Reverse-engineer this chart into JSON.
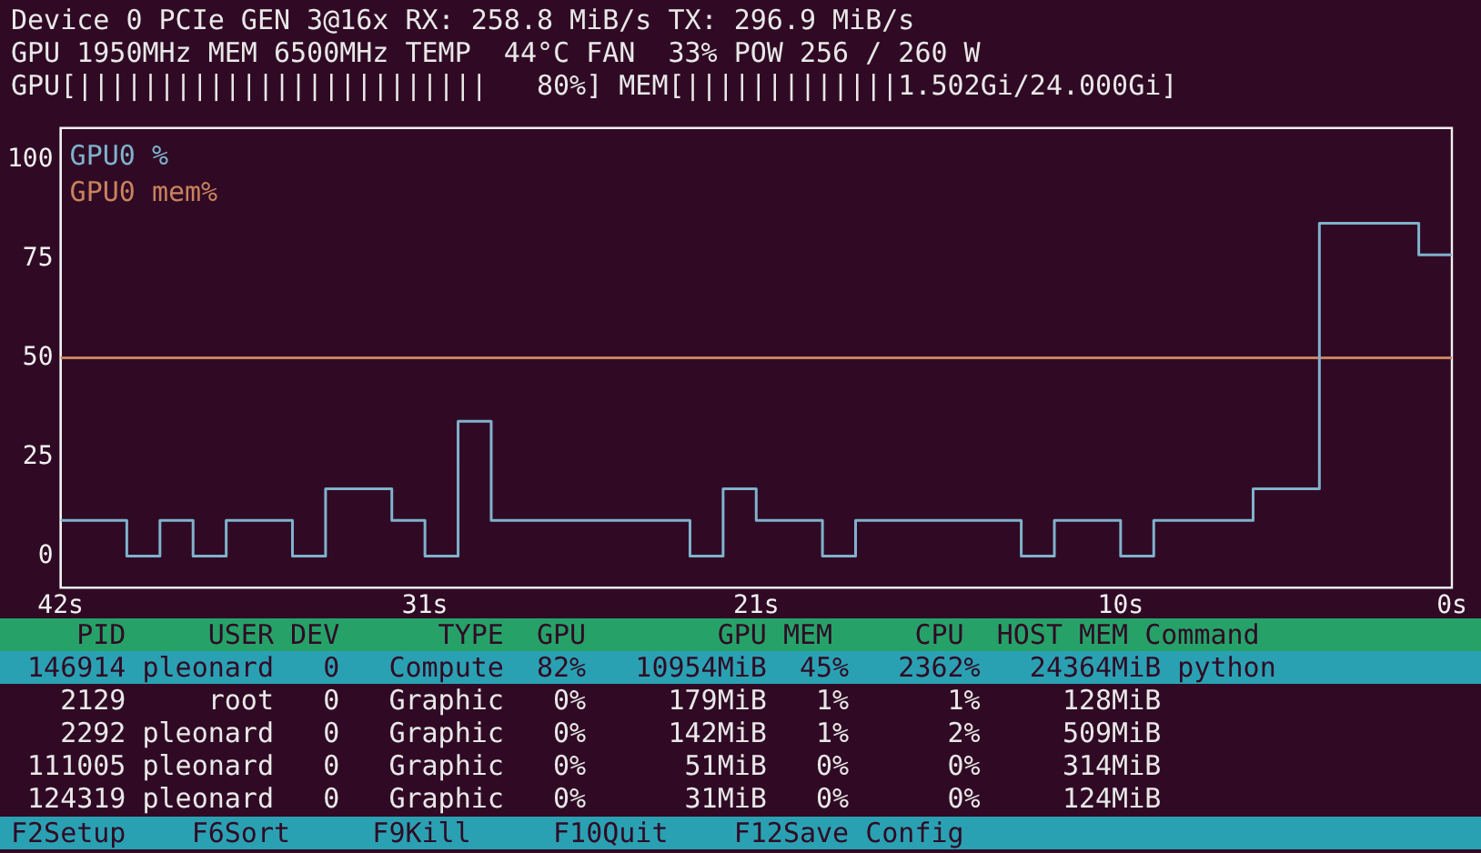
{
  "chart_data": [
    {
      "type": "other",
      "annotations": [
        "Device 0 PCIe GEN 3@16x RX: 258.8 MiB/s TX: 296.9 MiB/s",
        "GPU 1950MHz MEM 6500MHz TEMP  44°C FAN  33% POW 256 / 260 W",
        "GPU[|||||||||||||||||||||||||   80%] MEM[|||||||||||||1.502Gi/24.000Gi]"
      ]
    },
    {
      "type": "step",
      "legend": "top left",
      "ylim": [
        -8,
        108
      ],
      "yticks": [
        0,
        25,
        50,
        75,
        100
      ],
      "xlim": [
        42,
        0
      ],
      "xticks": [
        {
          "value": 42,
          "label": "42s"
        },
        {
          "value": 31,
          "label": "31s"
        },
        {
          "value": 21,
          "label": "21s"
        },
        {
          "value": 10,
          "label": "10s"
        },
        {
          "value": 0,
          "label": "0s"
        }
      ],
      "series": [
        {
          "name": "GPU0 %",
          "color": "#7fb2cc",
          "type": "step",
          "x": [
            42,
            41,
            40,
            39,
            38,
            37,
            36,
            35,
            34,
            33,
            32,
            31,
            30,
            29,
            28,
            27,
            26,
            25,
            24,
            23,
            22,
            21,
            20,
            19,
            18,
            17,
            16,
            15,
            14,
            13,
            12,
            11,
            10,
            9,
            8,
            7,
            6,
            5,
            4,
            3,
            2,
            1,
            0
          ],
          "values": [
            9,
            9,
            0,
            9,
            0,
            9,
            9,
            0,
            17,
            17,
            9,
            0,
            34,
            9,
            9,
            9,
            9,
            9,
            9,
            0,
            17,
            9,
            9,
            0,
            9,
            9,
            9,
            9,
            9,
            0,
            9,
            9,
            0,
            9,
            9,
            9,
            17,
            17,
            84,
            84,
            84,
            76,
            76
          ]
        },
        {
          "name": "GPU0 mem%",
          "color": "#c8825e",
          "type": "line",
          "x": [
            42,
            0
          ],
          "values": [
            50,
            50
          ]
        }
      ]
    },
    {
      "type": "other",
      "annotations": [
        "    PID     USER DEV      TYPE  GPU        GPU MEM     CPU  HOST MEM Command",
        " 146914 pleonard   0   Compute  82%   10954MiB  45%   2362%   24364MiB python",
        "   2129     root   0   Graphic   0%     179MiB   1%      1%     128MiB",
        "   2292 pleonard   0   Graphic   0%     142MiB   1%      2%     509MiB",
        " 111005 pleonard   0   Graphic   0%      51MiB   0%      0%     314MiB",
        " 124319 pleonard   0   Graphic   0%      31MiB   0%      0%     124MiB",
        "F2Setup    F6Sort     F9Kill     F10Quit    F12Save Config"
      ]
    }
  ]
}
